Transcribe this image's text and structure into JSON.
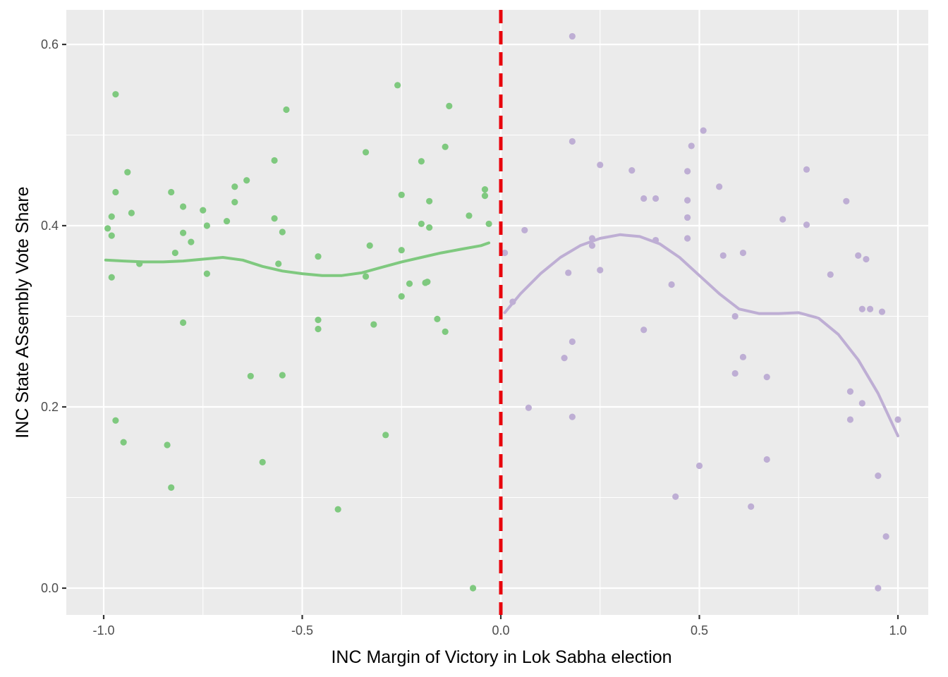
{
  "chart_data": {
    "type": "scatter",
    "title": "",
    "xlabel": "INC Margin of Victory in Lok Sabha election",
    "ylabel": "INC State ASsembly Vote Share",
    "xlim": [
      -1.1,
      1.1
    ],
    "ylim": [
      -0.03,
      0.64
    ],
    "x_ticks": [
      -1.0,
      -0.5,
      0.0,
      0.5,
      1.0
    ],
    "x_tick_labels": [
      "-1.0",
      "-0.5",
      "0.0",
      "0.5",
      "1.0"
    ],
    "y_ticks": [
      0.0,
      0.2,
      0.4,
      0.6
    ],
    "y_tick_labels": [
      "0.0",
      "0.2",
      "0.4",
      "0.6"
    ],
    "grid": true,
    "legend": "none",
    "cutoff": {
      "x": 0.0,
      "color": "#e8000b",
      "style": "dashed"
    },
    "colors": {
      "panel_bg": "#ebebeb",
      "grid": "#ffffff",
      "left_series": "#7fc97f",
      "right_series": "#beaed4",
      "cutoff": "#e8000b"
    },
    "series": [
      {
        "side": "left",
        "color": "#7fc97f",
        "points": [
          [
            -0.99,
            0.397
          ],
          [
            -0.98,
            0.41
          ],
          [
            -0.98,
            0.389
          ],
          [
            -0.98,
            0.343
          ],
          [
            -0.97,
            0.545
          ],
          [
            -0.97,
            0.437
          ],
          [
            -0.97,
            0.185
          ],
          [
            -0.95,
            0.161
          ],
          [
            -0.94,
            0.459
          ],
          [
            -0.93,
            0.414
          ],
          [
            -0.91,
            0.358
          ],
          [
            -0.84,
            0.158
          ],
          [
            -0.83,
            0.437
          ],
          [
            -0.83,
            0.111
          ],
          [
            -0.82,
            0.37
          ],
          [
            -0.8,
            0.421
          ],
          [
            -0.8,
            0.392
          ],
          [
            -0.8,
            0.293
          ],
          [
            -0.78,
            0.382
          ],
          [
            -0.75,
            0.417
          ],
          [
            -0.74,
            0.4
          ],
          [
            -0.74,
            0.347
          ],
          [
            -0.69,
            0.405
          ],
          [
            -0.67,
            0.443
          ],
          [
            -0.67,
            0.426
          ],
          [
            -0.64,
            0.45
          ],
          [
            -0.63,
            0.234
          ],
          [
            -0.6,
            0.139
          ],
          [
            -0.57,
            0.472
          ],
          [
            -0.57,
            0.408
          ],
          [
            -0.56,
            0.358
          ],
          [
            -0.55,
            0.393
          ],
          [
            -0.55,
            0.235
          ],
          [
            -0.54,
            0.528
          ],
          [
            -0.46,
            0.366
          ],
          [
            -0.46,
            0.296
          ],
          [
            -0.46,
            0.286
          ],
          [
            -0.41,
            0.087
          ],
          [
            -0.34,
            0.481
          ],
          [
            -0.34,
            0.344
          ],
          [
            -0.33,
            0.378
          ],
          [
            -0.32,
            0.291
          ],
          [
            -0.29,
            0.169
          ],
          [
            -0.26,
            0.555
          ],
          [
            -0.25,
            0.434
          ],
          [
            -0.25,
            0.373
          ],
          [
            -0.25,
            0.322
          ],
          [
            -0.23,
            0.336
          ],
          [
            -0.2,
            0.471
          ],
          [
            -0.2,
            0.402
          ],
          [
            -0.19,
            0.337
          ],
          [
            -0.185,
            0.338
          ],
          [
            -0.18,
            0.427
          ],
          [
            -0.18,
            0.398
          ],
          [
            -0.16,
            0.297
          ],
          [
            -0.14,
            0.487
          ],
          [
            -0.14,
            0.283
          ],
          [
            -0.13,
            0.532
          ],
          [
            -0.08,
            0.411
          ],
          [
            -0.07,
            0.0
          ],
          [
            -0.04,
            0.44
          ],
          [
            -0.04,
            0.433
          ],
          [
            -0.03,
            0.402
          ]
        ],
        "smooth": [
          [
            -0.995,
            0.362
          ],
          [
            -0.95,
            0.361
          ],
          [
            -0.9,
            0.36
          ],
          [
            -0.85,
            0.36
          ],
          [
            -0.8,
            0.361
          ],
          [
            -0.75,
            0.363
          ],
          [
            -0.7,
            0.365
          ],
          [
            -0.65,
            0.362
          ],
          [
            -0.6,
            0.355
          ],
          [
            -0.55,
            0.35
          ],
          [
            -0.5,
            0.347
          ],
          [
            -0.45,
            0.345
          ],
          [
            -0.4,
            0.345
          ],
          [
            -0.35,
            0.348
          ],
          [
            -0.3,
            0.354
          ],
          [
            -0.25,
            0.36
          ],
          [
            -0.2,
            0.365
          ],
          [
            -0.15,
            0.37
          ],
          [
            -0.1,
            0.374
          ],
          [
            -0.05,
            0.378
          ],
          [
            -0.03,
            0.381
          ]
        ]
      },
      {
        "side": "right",
        "color": "#beaed4",
        "points": [
          [
            0.01,
            0.37
          ],
          [
            0.03,
            0.316
          ],
          [
            0.06,
            0.395
          ],
          [
            0.07,
            0.199
          ],
          [
            0.16,
            0.254
          ],
          [
            0.17,
            0.348
          ],
          [
            0.18,
            0.609
          ],
          [
            0.18,
            0.493
          ],
          [
            0.18,
            0.272
          ],
          [
            0.18,
            0.189
          ],
          [
            0.23,
            0.386
          ],
          [
            0.23,
            0.378
          ],
          [
            0.25,
            0.467
          ],
          [
            0.25,
            0.351
          ],
          [
            0.33,
            0.461
          ],
          [
            0.36,
            0.43
          ],
          [
            0.36,
            0.285
          ],
          [
            0.39,
            0.43
          ],
          [
            0.39,
            0.384
          ],
          [
            0.43,
            0.335
          ],
          [
            0.44,
            0.101
          ],
          [
            0.47,
            0.46
          ],
          [
            0.47,
            0.428
          ],
          [
            0.47,
            0.409
          ],
          [
            0.47,
            0.386
          ],
          [
            0.48,
            0.488
          ],
          [
            0.5,
            0.135
          ],
          [
            0.51,
            0.505
          ],
          [
            0.55,
            0.443
          ],
          [
            0.56,
            0.367
          ],
          [
            0.59,
            0.3
          ],
          [
            0.59,
            0.237
          ],
          [
            0.61,
            0.37
          ],
          [
            0.61,
            0.255
          ],
          [
            0.63,
            0.09
          ],
          [
            0.67,
            0.233
          ],
          [
            0.67,
            0.142
          ],
          [
            0.71,
            0.407
          ],
          [
            0.77,
            0.462
          ],
          [
            0.77,
            0.401
          ],
          [
            0.83,
            0.346
          ],
          [
            0.87,
            0.427
          ],
          [
            0.88,
            0.217
          ],
          [
            0.88,
            0.186
          ],
          [
            0.9,
            0.367
          ],
          [
            0.91,
            0.308
          ],
          [
            0.91,
            0.204
          ],
          [
            0.92,
            0.363
          ],
          [
            0.93,
            0.308
          ],
          [
            0.95,
            0.124
          ],
          [
            0.95,
            0.0
          ],
          [
            0.96,
            0.305
          ],
          [
            0.97,
            0.057
          ],
          [
            1.0,
            0.186
          ]
        ],
        "smooth": [
          [
            0.01,
            0.304
          ],
          [
            0.05,
            0.325
          ],
          [
            0.1,
            0.347
          ],
          [
            0.15,
            0.365
          ],
          [
            0.2,
            0.378
          ],
          [
            0.25,
            0.386
          ],
          [
            0.3,
            0.39
          ],
          [
            0.35,
            0.388
          ],
          [
            0.4,
            0.38
          ],
          [
            0.45,
            0.365
          ],
          [
            0.5,
            0.345
          ],
          [
            0.55,
            0.325
          ],
          [
            0.6,
            0.308
          ],
          [
            0.65,
            0.303
          ],
          [
            0.7,
            0.303
          ],
          [
            0.75,
            0.304
          ],
          [
            0.8,
            0.298
          ],
          [
            0.85,
            0.28
          ],
          [
            0.9,
            0.252
          ],
          [
            0.95,
            0.215
          ],
          [
            1.0,
            0.168
          ]
        ]
      }
    ]
  }
}
